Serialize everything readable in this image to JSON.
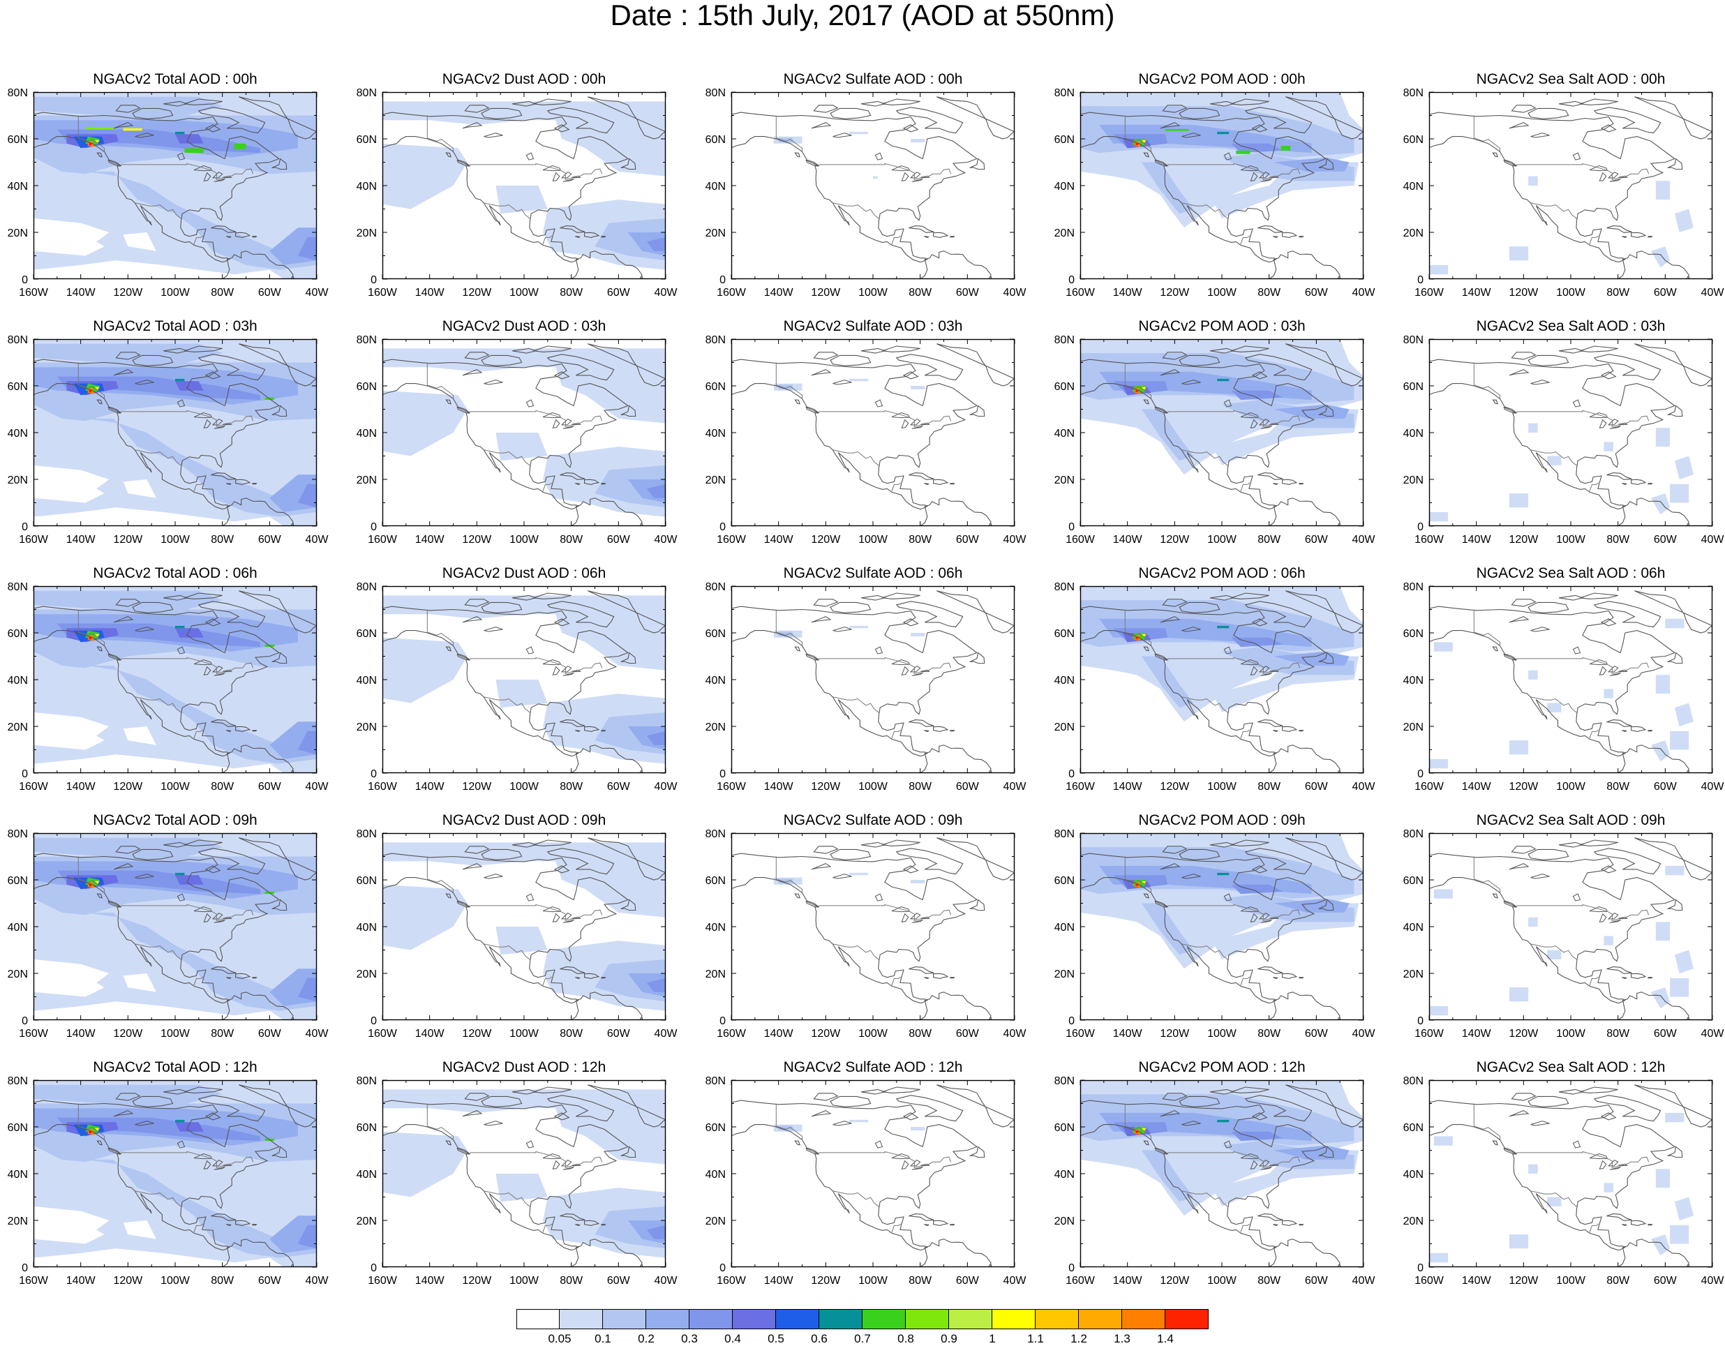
{
  "title": "Date : 15th July, 2017 (AOD at 550nm)",
  "lon_labels": [
    "160W",
    "140W",
    "120W",
    "100W",
    "80W",
    "60W",
    "40W"
  ],
  "lat_labels": [
    "80N",
    "60N",
    "40N",
    "20N",
    "0"
  ],
  "colors": {
    "c1": "#cfdcf6",
    "c2": "#b2c6f2",
    "c3": "#94adef",
    "c4": "#7f96eb",
    "c5": "#6a6fe4",
    "c6": "#1f5ee8",
    "c7": "#06909a",
    "c8": "#3ad11d",
    "c9": "#7fe70c",
    "c10": "#bcef44",
    "c11": "#ffff00",
    "c12": "#ffc700",
    "c13": "#ffaa00",
    "c14": "#ff7f00",
    "c15": "#ff2200",
    "coast": "#555555",
    "frame": "#000000"
  },
  "colorbar": {
    "colors": [
      "#ffffff",
      "#cfdcf6",
      "#b2c6f2",
      "#94adef",
      "#7f96eb",
      "#6a6fe4",
      "#1f5ee8",
      "#06909a",
      "#3ad11d",
      "#7fe70c",
      "#bcef44",
      "#ffff00",
      "#ffc700",
      "#ffaa00",
      "#ff7f00",
      "#ff2200"
    ],
    "labels": [
      "0.05",
      "0.1",
      "0.2",
      "0.3",
      "0.4",
      "0.5",
      "0.6",
      "0.7",
      "0.8",
      "0.9",
      "1",
      "1.1",
      "1.2",
      "1.3",
      "1.4"
    ]
  },
  "panels": [
    {
      "title": "NGACv2 Total AOD : 00h",
      "kind": "total",
      "hour": 0
    },
    {
      "title": "NGACv2 Dust AOD : 00h",
      "kind": "dust",
      "hour": 0
    },
    {
      "title": "NGACv2 Sulfate AOD : 00h",
      "kind": "sulfate",
      "hour": 0
    },
    {
      "title": "NGACv2 POM AOD : 00h",
      "kind": "pom",
      "hour": 0
    },
    {
      "title": "NGACv2 Sea Salt AOD : 00h",
      "kind": "seasalt",
      "hour": 0
    },
    {
      "title": "NGACv2 Total AOD : 03h",
      "kind": "total",
      "hour": 3
    },
    {
      "title": "NGACv2 Dust AOD : 03h",
      "kind": "dust",
      "hour": 3
    },
    {
      "title": "NGACv2 Sulfate AOD : 03h",
      "kind": "sulfate",
      "hour": 3
    },
    {
      "title": "NGACv2 POM AOD : 03h",
      "kind": "pom",
      "hour": 3
    },
    {
      "title": "NGACv2 Sea Salt AOD : 03h",
      "kind": "seasalt",
      "hour": 3
    },
    {
      "title": "NGACv2 Total AOD : 06h",
      "kind": "total",
      "hour": 6
    },
    {
      "title": "NGACv2 Dust AOD : 06h",
      "kind": "dust",
      "hour": 6
    },
    {
      "title": "NGACv2 Sulfate AOD : 06h",
      "kind": "sulfate",
      "hour": 6
    },
    {
      "title": "NGACv2 POM AOD : 06h",
      "kind": "pom",
      "hour": 6
    },
    {
      "title": "NGACv2 Sea Salt AOD : 06h",
      "kind": "seasalt",
      "hour": 6
    },
    {
      "title": "NGACv2 Total AOD : 09h",
      "kind": "total",
      "hour": 9
    },
    {
      "title": "NGACv2 Dust AOD : 09h",
      "kind": "dust",
      "hour": 9
    },
    {
      "title": "NGACv2 Sulfate AOD : 09h",
      "kind": "sulfate",
      "hour": 9
    },
    {
      "title": "NGACv2 POM AOD : 09h",
      "kind": "pom",
      "hour": 9
    },
    {
      "title": "NGACv2 Sea Salt  AOD : 09h",
      "kind": "seasalt",
      "hour": 9
    },
    {
      "title": "NGACv2 Total AOD  : 12h",
      "kind": "total",
      "hour": 12
    },
    {
      "title": "NGACv2 Dust AOD : 12h",
      "kind": "dust",
      "hour": 12
    },
    {
      "title": "NGACv2 Sulfate AOD : 12h",
      "kind": "sulfate",
      "hour": 12
    },
    {
      "title": "NGACv2 POM  AOD : 12h",
      "kind": "pom",
      "hour": 12
    },
    {
      "title": "NGACv2 Sea Salt  AOD : 12h",
      "kind": "seasalt",
      "hour": 12
    }
  ]
}
